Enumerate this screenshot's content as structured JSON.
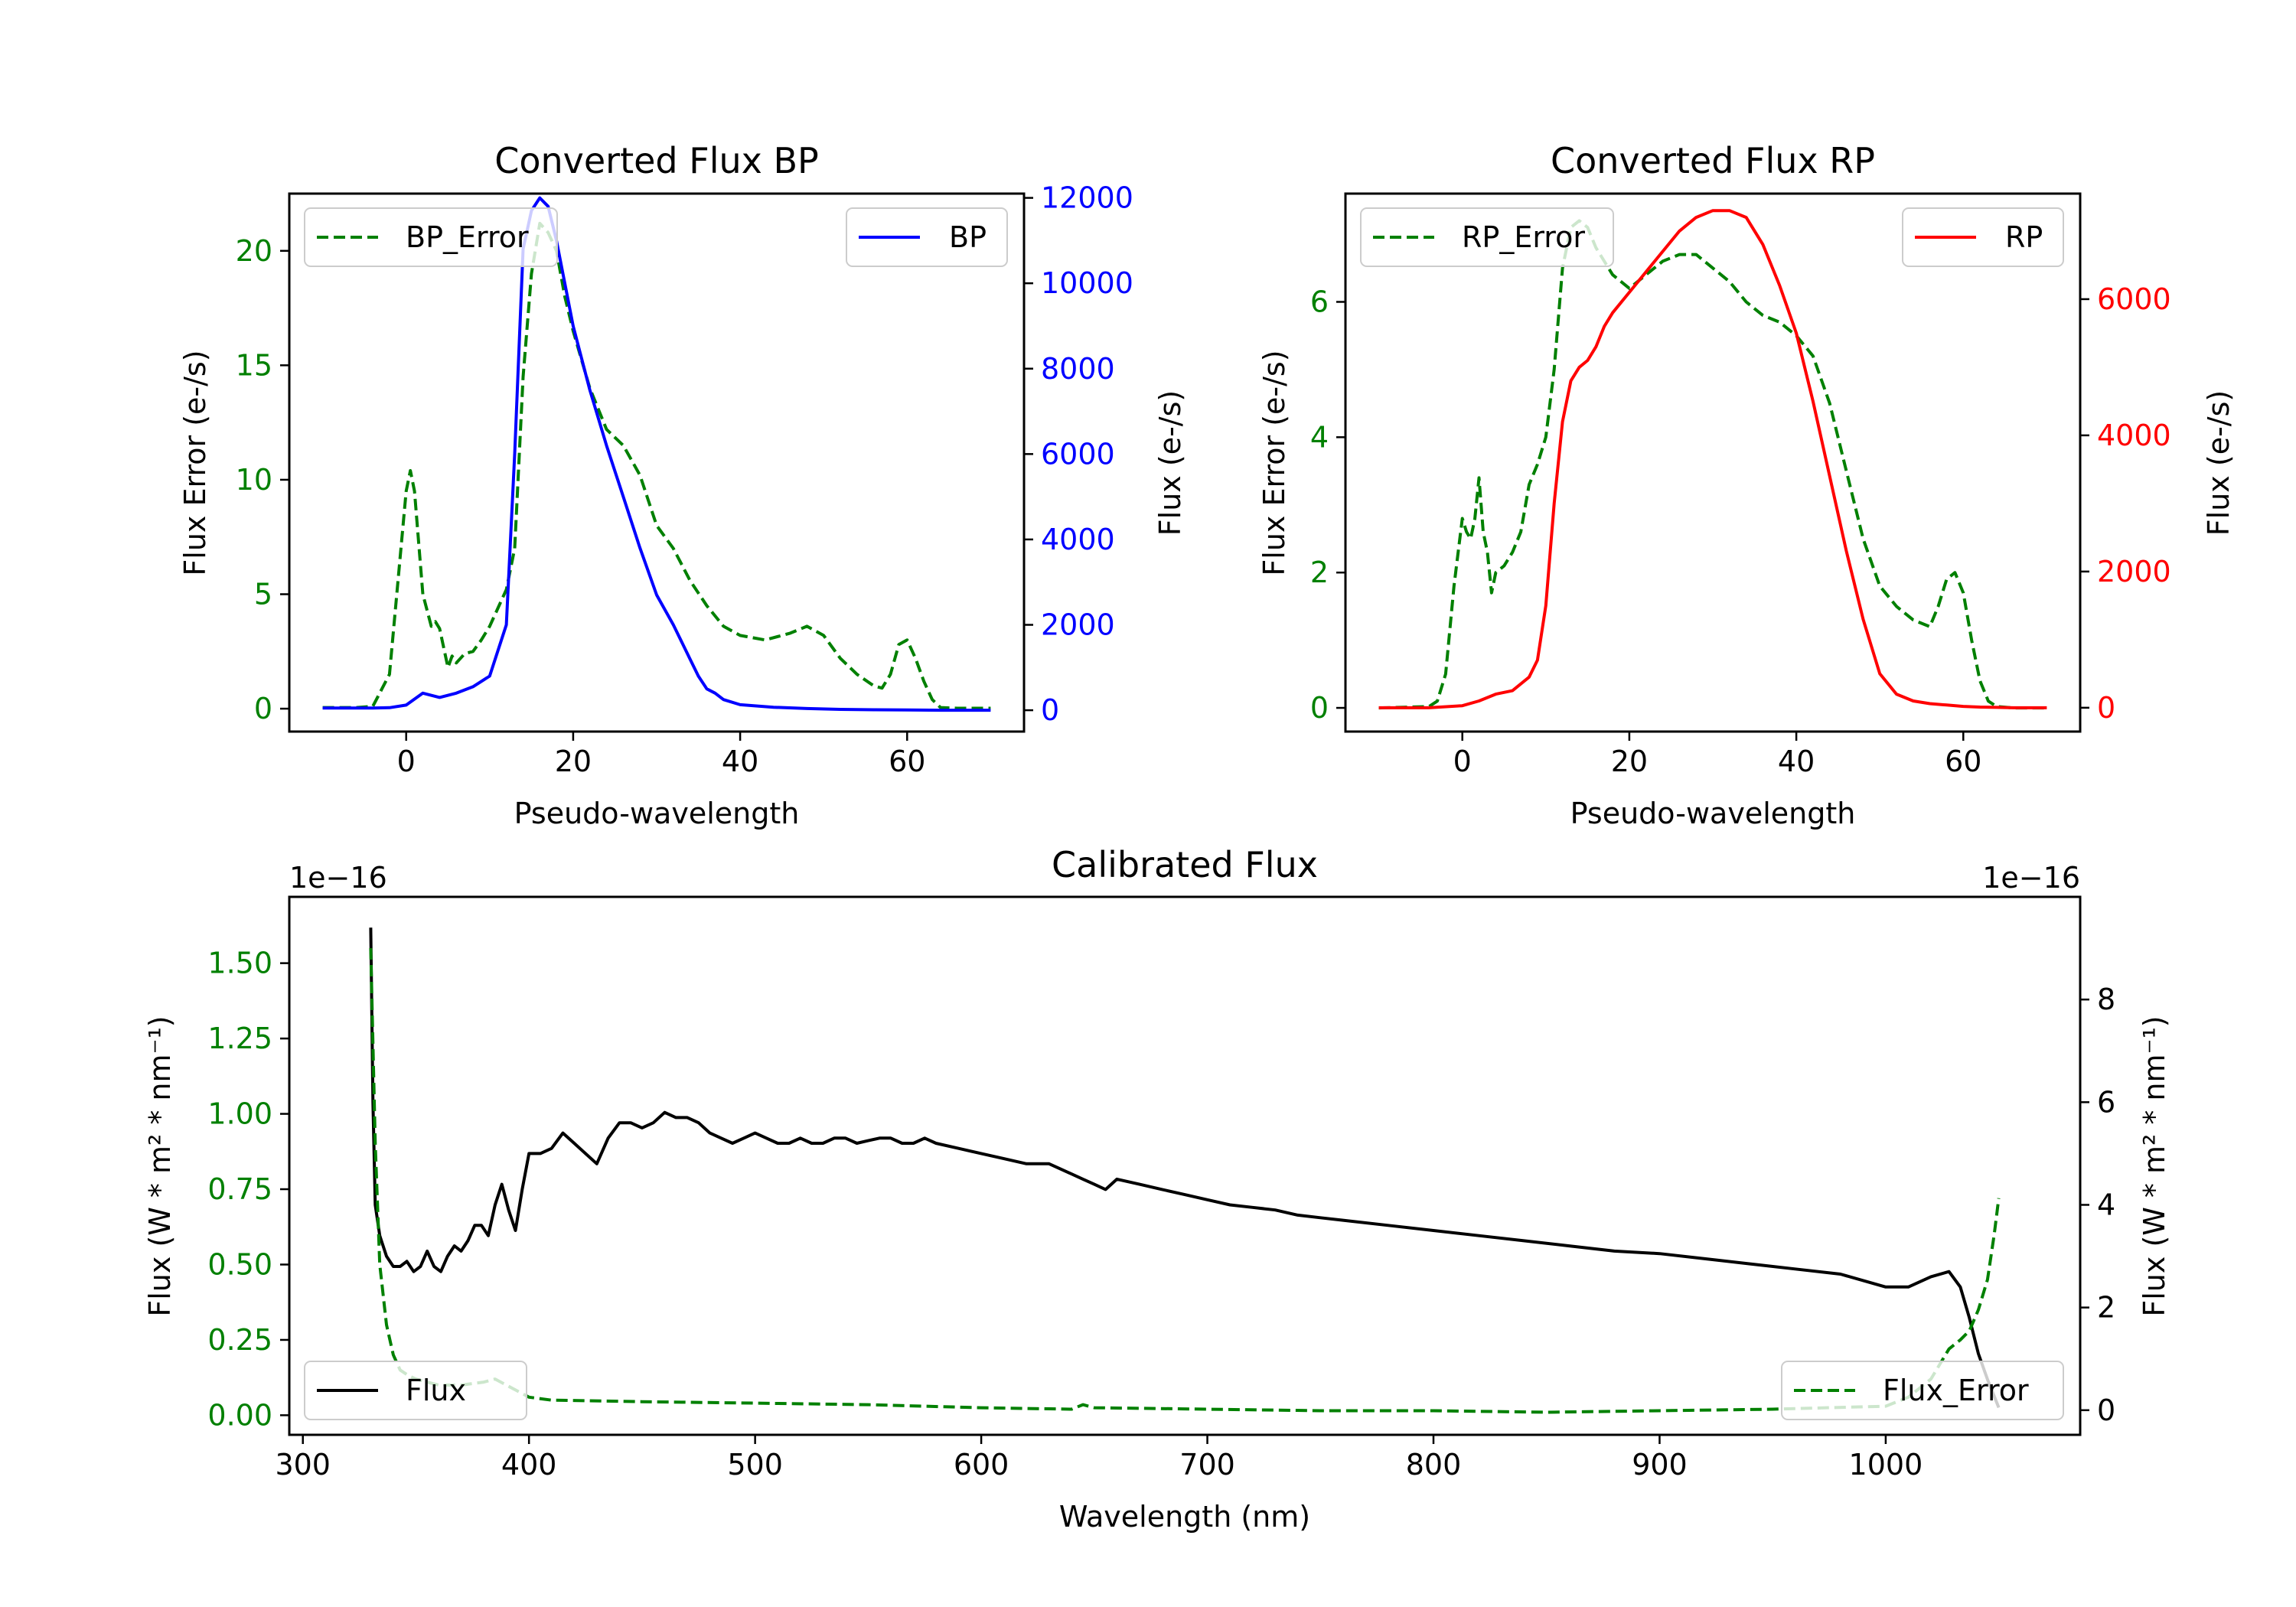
{
  "chart_data": [
    {
      "type": "line",
      "title": "Converted Flux BP",
      "xlabel": "Pseudo-wavelength",
      "xlim": [
        -14,
        74
      ],
      "xticks": [
        0,
        20,
        40,
        60
      ],
      "left_axis": {
        "label": "Flux Error (e-/s)",
        "color": "#008000",
        "ylim": [
          -1.0,
          22.5
        ],
        "ticks": [
          0,
          5,
          10,
          15,
          20
        ]
      },
      "right_axis": {
        "label": "Flux (e-/s)",
        "color": "#0000ff",
        "ylim": [
          -500,
          12100
        ],
        "ticks": [
          0,
          2000,
          4000,
          6000,
          8000,
          10000,
          12000
        ]
      },
      "series": [
        {
          "name": "BP_Error",
          "axis": "left",
          "style": "dashed",
          "color": "#008000",
          "x": [
            -10,
            -6,
            -4,
            -2,
            -1,
            0,
            0.5,
            1,
            2,
            3,
            3.5,
            4,
            5,
            5.5,
            6,
            7,
            8,
            9,
            10,
            11,
            12,
            13,
            14,
            15,
            16,
            17,
            18,
            19,
            20,
            22,
            24,
            26,
            28,
            30,
            32,
            34,
            36,
            38,
            40,
            43,
            46,
            48,
            50,
            52,
            54,
            56,
            57,
            58,
            59,
            60,
            61,
            62,
            63,
            64,
            66,
            68,
            70
          ],
          "y": [
            0.05,
            0.05,
            0.1,
            1.5,
            5.5,
            9.5,
            10.4,
            9.5,
            5.0,
            3.6,
            3.8,
            3.5,
            1.8,
            2.3,
            2.0,
            2.4,
            2.5,
            3.0,
            3.6,
            4.4,
            5.2,
            7.0,
            14.5,
            19.0,
            21.2,
            20.8,
            20.0,
            18.0,
            16.5,
            14.0,
            12.2,
            11.5,
            10.2,
            8.0,
            7.0,
            5.6,
            4.5,
            3.6,
            3.2,
            3.0,
            3.3,
            3.6,
            3.2,
            2.2,
            1.5,
            1.0,
            0.9,
            1.5,
            2.8,
            3.0,
            2.2,
            1.2,
            0.4,
            0.05,
            0.02,
            0.02,
            0.02
          ]
        },
        {
          "name": "BP",
          "axis": "right",
          "style": "solid",
          "color": "#0000ff",
          "x": [
            -10,
            -4,
            -2,
            0,
            2,
            4,
            6,
            8,
            10,
            12,
            13,
            14,
            15,
            16,
            17,
            18,
            19,
            20,
            22,
            24,
            26,
            28,
            30,
            32,
            34,
            35,
            36,
            37,
            38,
            40,
            44,
            48,
            52,
            56,
            60,
            64,
            70
          ],
          "y": [
            50,
            50,
            60,
            120,
            400,
            300,
            400,
            550,
            800,
            2000,
            6000,
            10800,
            11700,
            12000,
            11800,
            11000,
            10000,
            9000,
            7500,
            6200,
            5000,
            3800,
            2700,
            2000,
            1200,
            800,
            500,
            400,
            250,
            130,
            70,
            40,
            20,
            10,
            5,
            0,
            0
          ]
        }
      ],
      "legend": [
        {
          "label": "BP_Error",
          "position": "top-left"
        },
        {
          "label": "BP",
          "position": "top-right"
        }
      ]
    },
    {
      "type": "line",
      "title": "Converted Flux RP",
      "xlabel": "Pseudo-wavelength",
      "xlim": [
        -14,
        74
      ],
      "xticks": [
        0,
        20,
        40,
        60
      ],
      "left_axis": {
        "label": "Flux Error (e-/s)",
        "color": "#008000",
        "ylim": [
          -0.35,
          7.6
        ],
        "ticks": [
          0,
          2,
          4,
          6
        ]
      },
      "right_axis": {
        "label": "Flux (e-/s)",
        "color": "#ff0000",
        "ylim": [
          -350,
          7550
        ],
        "ticks": [
          0,
          2000,
          4000,
          6000
        ]
      },
      "series": [
        {
          "name": "RP_Error",
          "axis": "left",
          "style": "dashed",
          "color": "#008000",
          "x": [
            -10,
            -4,
            -3,
            -2,
            -1,
            0,
            0.5,
            1,
            1.5,
            2,
            2.5,
            3,
            3.5,
            4,
            5,
            6,
            7,
            8,
            9,
            10,
            11,
            12,
            13,
            14,
            15,
            16,
            18,
            20,
            22,
            24,
            26,
            28,
            30,
            32,
            34,
            36,
            38,
            40,
            42,
            44,
            46,
            48,
            50,
            52,
            54,
            56,
            57,
            58,
            59,
            60,
            61,
            62,
            63,
            64,
            66,
            70
          ],
          "y": [
            0.0,
            0.02,
            0.1,
            0.5,
            1.8,
            2.8,
            2.6,
            2.5,
            2.8,
            3.4,
            2.6,
            2.3,
            1.7,
            2.0,
            2.1,
            2.3,
            2.6,
            3.3,
            3.6,
            4.0,
            5.0,
            6.5,
            7.1,
            7.2,
            7.1,
            6.8,
            6.4,
            6.2,
            6.4,
            6.6,
            6.7,
            6.7,
            6.5,
            6.3,
            6.0,
            5.8,
            5.7,
            5.5,
            5.2,
            4.5,
            3.5,
            2.5,
            1.8,
            1.5,
            1.3,
            1.2,
            1.5,
            1.9,
            2.0,
            1.7,
            1.0,
            0.4,
            0.1,
            0.02,
            0.0,
            0.0
          ]
        },
        {
          "name": "RP",
          "axis": "right",
          "style": "solid",
          "color": "#ff0000",
          "x": [
            -10,
            -4,
            0,
            2,
            4,
            6,
            8,
            9,
            10,
            11,
            12,
            13,
            14,
            15,
            16,
            17,
            18,
            20,
            22,
            24,
            26,
            28,
            30,
            32,
            34,
            36,
            38,
            40,
            42,
            44,
            46,
            48,
            50,
            52,
            54,
            56,
            58,
            60,
            62,
            64,
            66,
            70
          ],
          "y": [
            0,
            0,
            30,
            100,
            200,
            250,
            450,
            700,
            1500,
            3000,
            4200,
            4800,
            5000,
            5100,
            5300,
            5600,
            5800,
            6100,
            6400,
            6700,
            7000,
            7200,
            7300,
            7300,
            7200,
            6800,
            6200,
            5500,
            4500,
            3400,
            2300,
            1300,
            500,
            200,
            100,
            60,
            40,
            20,
            10,
            5,
            0,
            0
          ]
        }
      ],
      "legend": [
        {
          "label": "RP_Error",
          "position": "top-left"
        },
        {
          "label": "RP",
          "position": "top-right"
        }
      ]
    },
    {
      "type": "line",
      "title": "Calibrated Flux",
      "xlabel": "Wavelength (nm)",
      "xlim": [
        294,
        1086
      ],
      "xticks": [
        300,
        400,
        500,
        600,
        700,
        800,
        900,
        1000
      ],
      "left_axis": {
        "label": "Flux (W * m² * nm⁻¹)",
        "color": "#008000",
        "ylim": [
          -0.065,
          1.72
        ],
        "ticks": [
          0.0,
          0.25,
          0.5,
          0.75,
          1.0,
          1.25,
          1.5
        ],
        "tick_labels": [
          "0.00",
          "0.25",
          "0.50",
          "0.75",
          "1.00",
          "1.25",
          "1.50"
        ],
        "offset": "1e−16"
      },
      "right_axis": {
        "label": "Flux (W * m² * nm⁻¹)",
        "color": "#000000",
        "ylim": [
          -0.48,
          10.0
        ],
        "ticks": [
          0,
          2,
          4,
          6,
          8
        ],
        "offset": "1e−16"
      },
      "series": [
        {
          "name": "Flux",
          "axis": "right",
          "style": "solid",
          "color": "#000000",
          "x": [
            330,
            331,
            332,
            334,
            337,
            340,
            343,
            346,
            349,
            352,
            355,
            358,
            361,
            364,
            367,
            370,
            373,
            376,
            379,
            382,
            385,
            388,
            391,
            394,
            397,
            400,
            405,
            410,
            415,
            420,
            425,
            430,
            435,
            440,
            445,
            450,
            455,
            460,
            465,
            470,
            475,
            480,
            485,
            490,
            495,
            500,
            505,
            510,
            515,
            520,
            525,
            530,
            535,
            540,
            545,
            550,
            555,
            560,
            565,
            570,
            575,
            580,
            590,
            600,
            610,
            620,
            630,
            640,
            645,
            650,
            655,
            660,
            670,
            680,
            690,
            700,
            710,
            720,
            730,
            740,
            750,
            760,
            780,
            800,
            820,
            840,
            860,
            880,
            900,
            920,
            940,
            960,
            980,
            1000,
            1010,
            1020,
            1028,
            1033,
            1037,
            1041,
            1045,
            1050
          ],
          "y": [
            9.4,
            6.0,
            4.0,
            3.4,
            3.0,
            2.8,
            2.8,
            2.9,
            2.7,
            2.8,
            3.1,
            2.8,
            2.7,
            3.0,
            3.2,
            3.1,
            3.3,
            3.6,
            3.6,
            3.4,
            4.0,
            4.4,
            3.9,
            3.5,
            4.3,
            5.0,
            5.0,
            5.1,
            5.4,
            5.2,
            5.0,
            4.8,
            5.3,
            5.6,
            5.6,
            5.5,
            5.6,
            5.8,
            5.7,
            5.7,
            5.6,
            5.4,
            5.3,
            5.2,
            5.3,
            5.4,
            5.3,
            5.2,
            5.2,
            5.3,
            5.2,
            5.2,
            5.3,
            5.3,
            5.2,
            5.25,
            5.3,
            5.3,
            5.2,
            5.2,
            5.3,
            5.2,
            5.1,
            5.0,
            4.9,
            4.8,
            4.8,
            4.6,
            4.5,
            4.4,
            4.3,
            4.5,
            4.4,
            4.3,
            4.2,
            4.1,
            4.0,
            3.95,
            3.9,
            3.8,
            3.75,
            3.7,
            3.6,
            3.5,
            3.4,
            3.3,
            3.2,
            3.1,
            3.05,
            2.95,
            2.85,
            2.75,
            2.65,
            2.4,
            2.4,
            2.6,
            2.7,
            2.4,
            1.8,
            1.1,
            0.6,
            0.05
          ]
        },
        {
          "name": "Flux_Error",
          "axis": "left",
          "style": "dashed",
          "color": "#008000",
          "x": [
            330,
            332,
            334,
            337,
            340,
            343,
            347,
            350,
            355,
            360,
            370,
            380,
            385,
            390,
            395,
            400,
            410,
            450,
            500,
            550,
            600,
            640,
            645,
            650,
            700,
            750,
            800,
            850,
            900,
            950,
            1000,
            1010,
            1020,
            1028,
            1033,
            1037,
            1041,
            1045,
            1048,
            1050
          ],
          "y": [
            1.55,
            0.9,
            0.5,
            0.3,
            0.2,
            0.15,
            0.13,
            0.12,
            0.11,
            0.1,
            0.1,
            0.11,
            0.12,
            0.1,
            0.08,
            0.06,
            0.05,
            0.045,
            0.04,
            0.035,
            0.025,
            0.02,
            0.035,
            0.025,
            0.02,
            0.015,
            0.015,
            0.01,
            0.015,
            0.02,
            0.03,
            0.06,
            0.12,
            0.22,
            0.25,
            0.28,
            0.35,
            0.45,
            0.6,
            0.72
          ]
        }
      ],
      "legend": [
        {
          "label": "Flux",
          "position": "bottom-left"
        },
        {
          "label": "Flux_Error",
          "position": "bottom-right"
        }
      ]
    }
  ]
}
